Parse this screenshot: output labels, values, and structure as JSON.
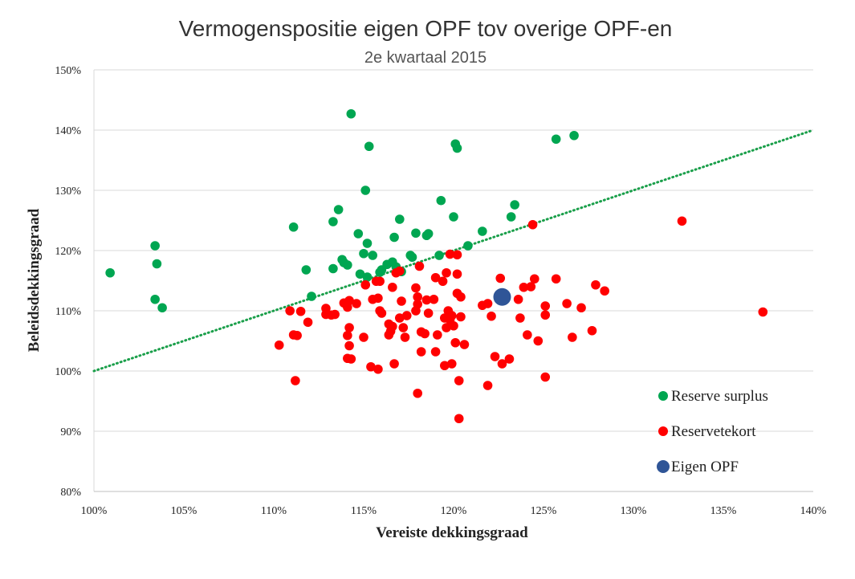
{
  "chart_data": {
    "type": "scatter",
    "title": "Vermogenspositie eigen OPF tov overige OPF-en",
    "subtitle": "2e kwartaal 2015",
    "xlabel": "Vereiste dekkingsgraad",
    "ylabel": "Beleidsdekkingsgraad",
    "xlim": [
      100,
      140
    ],
    "ylim": [
      80,
      150
    ],
    "x_ticks": [
      "100%",
      "105%",
      "110%",
      "115%",
      "120%",
      "125%",
      "130%",
      "135%",
      "140%"
    ],
    "y_ticks": [
      "80%",
      "90%",
      "100%",
      "110%",
      "120%",
      "130%",
      "140%",
      "150%"
    ],
    "grid": "horizontal",
    "legend_position": "bottom-right",
    "trendline": {
      "style": "dotted",
      "color": "#1a9f4a",
      "from": [
        100,
        100
      ],
      "to": [
        140,
        140
      ]
    },
    "series": [
      {
        "name": "Reserve surplus",
        "color": "#00a651",
        "points": [
          [
            100.9,
            116.3
          ],
          [
            103.4,
            120.8
          ],
          [
            103.5,
            117.8
          ],
          [
            103.4,
            111.9
          ],
          [
            103.8,
            110.5
          ],
          [
            111.1,
            123.9
          ],
          [
            111.8,
            116.8
          ],
          [
            112.1,
            112.4
          ],
          [
            113.3,
            124.8
          ],
          [
            113.3,
            117.0
          ],
          [
            113.6,
            126.8
          ],
          [
            113.8,
            118.5
          ],
          [
            113.9,
            118.0
          ],
          [
            114.1,
            117.6
          ],
          [
            114.3,
            142.7
          ],
          [
            114.7,
            122.8
          ],
          [
            114.8,
            116.1
          ],
          [
            115.0,
            119.5
          ],
          [
            115.1,
            130.0
          ],
          [
            115.2,
            121.2
          ],
          [
            115.2,
            115.6
          ],
          [
            115.3,
            137.3
          ],
          [
            115.5,
            119.2
          ],
          [
            115.9,
            116.4
          ],
          [
            116.0,
            116.8
          ],
          [
            116.3,
            117.7
          ],
          [
            116.6,
            118.1
          ],
          [
            116.7,
            122.2
          ],
          [
            116.8,
            117.3
          ],
          [
            117.0,
            125.2
          ],
          [
            117.1,
            116.5
          ],
          [
            117.6,
            119.2
          ],
          [
            117.7,
            118.9
          ],
          [
            117.9,
            122.9
          ],
          [
            118.5,
            122.5
          ],
          [
            118.6,
            122.8
          ],
          [
            119.2,
            119.2
          ],
          [
            119.3,
            128.3
          ],
          [
            120.0,
            125.6
          ],
          [
            120.1,
            137.7
          ],
          [
            120.2,
            137.0
          ],
          [
            120.8,
            120.8
          ],
          [
            121.6,
            123.2
          ],
          [
            123.2,
            125.6
          ],
          [
            123.4,
            127.6
          ],
          [
            125.7,
            138.5
          ],
          [
            126.7,
            139.1
          ]
        ]
      },
      {
        "name": "Reservetekort",
        "color": "#ff0000",
        "points": [
          [
            110.3,
            104.3
          ],
          [
            110.9,
            110.0
          ],
          [
            111.1,
            106.0
          ],
          [
            111.2,
            98.4
          ],
          [
            111.3,
            105.9
          ],
          [
            111.5,
            109.9
          ],
          [
            111.9,
            108.1
          ],
          [
            112.9,
            110.4
          ],
          [
            112.9,
            109.4
          ],
          [
            113.2,
            109.3
          ],
          [
            113.4,
            109.4
          ],
          [
            113.9,
            111.3
          ],
          [
            114.1,
            110.6
          ],
          [
            114.1,
            102.1
          ],
          [
            114.1,
            105.9
          ],
          [
            114.2,
            107.2
          ],
          [
            114.2,
            104.2
          ],
          [
            114.2,
            111.7
          ],
          [
            114.3,
            102.0
          ],
          [
            114.6,
            111.2
          ],
          [
            115.0,
            105.6
          ],
          [
            115.1,
            114.3
          ],
          [
            115.4,
            100.7
          ],
          [
            115.5,
            111.9
          ],
          [
            115.7,
            114.9
          ],
          [
            115.8,
            112.1
          ],
          [
            115.8,
            100.3
          ],
          [
            115.9,
            110.0
          ],
          [
            115.9,
            114.9
          ],
          [
            116.0,
            109.6
          ],
          [
            116.4,
            107.8
          ],
          [
            116.4,
            106.0
          ],
          [
            116.5,
            106.6
          ],
          [
            116.6,
            113.9
          ],
          [
            116.6,
            107.4
          ],
          [
            116.7,
            101.2
          ],
          [
            116.8,
            116.3
          ],
          [
            117.0,
            116.6
          ],
          [
            117.0,
            108.8
          ],
          [
            117.1,
            111.6
          ],
          [
            117.2,
            107.2
          ],
          [
            117.3,
            105.6
          ],
          [
            117.4,
            109.2
          ],
          [
            117.9,
            110.0
          ],
          [
            117.9,
            113.8
          ],
          [
            118.0,
            111.1
          ],
          [
            118.0,
            112.3
          ],
          [
            118.0,
            96.3
          ],
          [
            118.1,
            117.4
          ],
          [
            118.2,
            106.5
          ],
          [
            118.2,
            103.2
          ],
          [
            118.4,
            106.2
          ],
          [
            118.5,
            111.8
          ],
          [
            118.6,
            109.6
          ],
          [
            118.9,
            111.9
          ],
          [
            119.0,
            115.5
          ],
          [
            119.0,
            103.2
          ],
          [
            119.1,
            106.0
          ],
          [
            119.4,
            114.9
          ],
          [
            119.5,
            108.8
          ],
          [
            119.5,
            100.9
          ],
          [
            119.6,
            116.3
          ],
          [
            119.6,
            107.2
          ],
          [
            119.7,
            110.0
          ],
          [
            119.8,
            119.4
          ],
          [
            119.8,
            108.5
          ],
          [
            119.9,
            109.2
          ],
          [
            119.9,
            101.2
          ],
          [
            120.0,
            107.5
          ],
          [
            120.1,
            104.7
          ],
          [
            120.2,
            119.3
          ],
          [
            120.2,
            116.1
          ],
          [
            120.2,
            112.9
          ],
          [
            120.3,
            98.4
          ],
          [
            120.3,
            92.1
          ],
          [
            120.4,
            112.3
          ],
          [
            120.4,
            109.0
          ],
          [
            120.6,
            104.4
          ],
          [
            121.6,
            110.9
          ],
          [
            121.9,
            111.2
          ],
          [
            121.9,
            97.6
          ],
          [
            122.1,
            109.1
          ],
          [
            122.3,
            102.4
          ],
          [
            122.6,
            115.4
          ],
          [
            122.7,
            101.2
          ],
          [
            123.1,
            102.0
          ],
          [
            123.6,
            111.9
          ],
          [
            123.7,
            108.8
          ],
          [
            123.9,
            113.9
          ],
          [
            124.1,
            106.0
          ],
          [
            124.3,
            114.0
          ],
          [
            124.4,
            124.3
          ],
          [
            124.5,
            115.3
          ],
          [
            124.7,
            105.0
          ],
          [
            125.1,
            110.8
          ],
          [
            125.1,
            109.3
          ],
          [
            125.1,
            99.0
          ],
          [
            125.7,
            115.3
          ],
          [
            126.3,
            111.2
          ],
          [
            126.6,
            105.6
          ],
          [
            127.1,
            110.5
          ],
          [
            127.7,
            106.7
          ],
          [
            127.9,
            114.3
          ],
          [
            128.4,
            113.3
          ],
          [
            132.7,
            124.9
          ],
          [
            137.2,
            109.8
          ]
        ]
      },
      {
        "name": "Eigen OPF",
        "color": "#2f5597",
        "points": [
          [
            122.7,
            112.3
          ]
        ]
      }
    ]
  }
}
